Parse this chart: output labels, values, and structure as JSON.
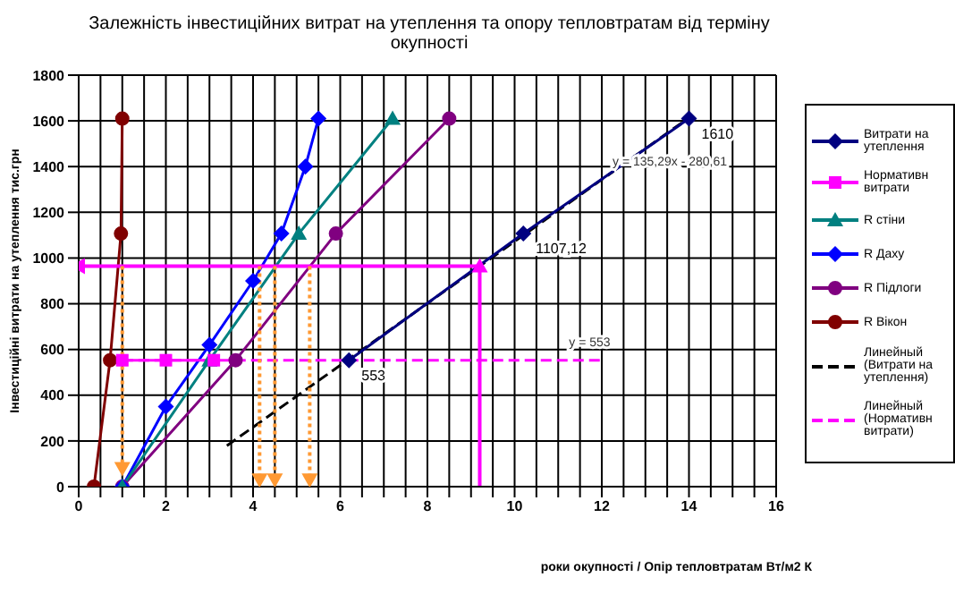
{
  "chart_data": {
    "type": "line",
    "title": "Залежність інвестиційних витрат на утеплення та опору тепловтратам від терміну окупності",
    "xlabel": "роки окупності / Опір тепловтратам Вт/м2 К",
    "ylabel": "Інвестиційні витрати на утеплення тис.грн",
    "xlim": [
      0,
      16
    ],
    "ylim": [
      0,
      1800
    ],
    "xticks": [
      0,
      {
        "value": 0.5,
        "label": null
      },
      2,
      {
        "value": 1,
        "label": null
      },
      {
        "value": 1.5,
        "label": null
      },
      {
        "value": 2.5,
        "label": null
      },
      {
        "value": 3,
        "label": null
      },
      {
        "value": 3.5,
        "label": null
      },
      4,
      {
        "value": 4.5,
        "label": null
      },
      {
        "value": 5,
        "label": null
      },
      {
        "value": 5.5,
        "label": null
      },
      6,
      {
        "value": 6.5,
        "label": null
      },
      {
        "value": 7,
        "label": null
      },
      {
        "value": 7.5,
        "label": null
      },
      8,
      {
        "value": 8.5,
        "label": null
      },
      {
        "value": 9,
        "label": null
      },
      {
        "value": 9.5,
        "label": null
      },
      10,
      {
        "value": 10.5,
        "label": null
      },
      {
        "value": 11,
        "label": null
      },
      {
        "value": 11.5,
        "label": null
      },
      12,
      {
        "value": 12.5,
        "label": null
      },
      {
        "value": 13,
        "label": null
      },
      {
        "value": 13.5,
        "label": null
      },
      14,
      {
        "value": 14.5,
        "label": null
      },
      {
        "value": 15,
        "label": null
      },
      {
        "value": 15.5,
        "label": null
      },
      16
    ],
    "yticks": [
      0,
      200,
      400,
      600,
      800,
      1000,
      1200,
      1400,
      1600,
      1800
    ],
    "grid": true,
    "legend": "right",
    "series": [
      {
        "name": "Витрати на утеплення",
        "color": "#000080",
        "marker": "diamond",
        "x": [
          6.2,
          10.2,
          14
        ],
        "values": [
          553,
          1107.12,
          1610
        ],
        "value_labels": [
          "553",
          "1107,12",
          "1610"
        ]
      },
      {
        "name": "Нормативн витрати",
        "color": "#ff00ff",
        "marker": "square",
        "x": [
          1,
          2,
          3.1
        ],
        "values": [
          553,
          553,
          553
        ]
      },
      {
        "name": "R стіни",
        "color": "#008080",
        "marker": "triangle",
        "x": [
          1,
          3,
          5.05,
          7.2
        ],
        "values": [
          0,
          553,
          1107,
          1610
        ]
      },
      {
        "name": "R Даху",
        "color": "#0000ff",
        "marker": "diamond",
        "x": [
          1,
          2,
          3,
          4,
          4.65,
          5.2,
          5.5
        ],
        "values": [
          0,
          350,
          620,
          900,
          1107,
          1400,
          1610
        ]
      },
      {
        "name": "R Підлоги",
        "color": "#800080",
        "marker": "circle",
        "x": [
          1,
          3.6,
          5.9,
          8.5
        ],
        "values": [
          0,
          553,
          1107,
          1610
        ]
      },
      {
        "name": "R Вікон",
        "color": "#800000",
        "marker": "circle",
        "x": [
          0.35,
          0.72,
          0.97,
          1.0
        ],
        "values": [
          0,
          553,
          1107,
          1610
        ]
      },
      {
        "name": "Линейный (Витрати на утеплення)",
        "color": "#000000",
        "marker": "none",
        "line_style": "dashed",
        "x": [
          3.4,
          14
        ],
        "values": [
          179,
          1614
        ]
      },
      {
        "name": "Линейный (Нормативн витрати)",
        "color": "#ff00ff",
        "marker": "none",
        "line_style": "dashed",
        "x": [
          1,
          12
        ],
        "values": [
          553,
          553
        ]
      },
      {
        "color": "#ff00ff",
        "marker": "triangle",
        "x": [
          9.2,
          9.2
        ],
        "values": [
          0,
          965
        ]
      },
      {
        "color": "#ff00ff",
        "marker": "triangle",
        "x": [
          9.2,
          0
        ],
        "values": [
          965,
          965
        ]
      },
      {
        "color": "#ff9933",
        "marker": "triangle",
        "line_style": "dotted",
        "x": [
          1,
          1
        ],
        "values": [
          965,
          80
        ]
      },
      {
        "color": "#ff9933",
        "marker": "triangle",
        "line_style": "dotted",
        "x": [
          4.15,
          4.15
        ],
        "values": [
          965,
          30
        ]
      },
      {
        "color": "#ff9933",
        "marker": "triangle",
        "line_style": "dotted",
        "x": [
          4.5,
          4.5
        ],
        "values": [
          965,
          30
        ]
      },
      {
        "color": "#ff9933",
        "marker": "triangle",
        "line_style": "dotted",
        "x": [
          5.3,
          5.3
        ],
        "values": [
          965,
          30
        ]
      }
    ],
    "annotations": [
      {
        "text": "y = 135,29x - 280,61",
        "x": 12,
        "y": 1343
      },
      {
        "text": "y = 553",
        "x": 11,
        "y": 553
      }
    ]
  }
}
